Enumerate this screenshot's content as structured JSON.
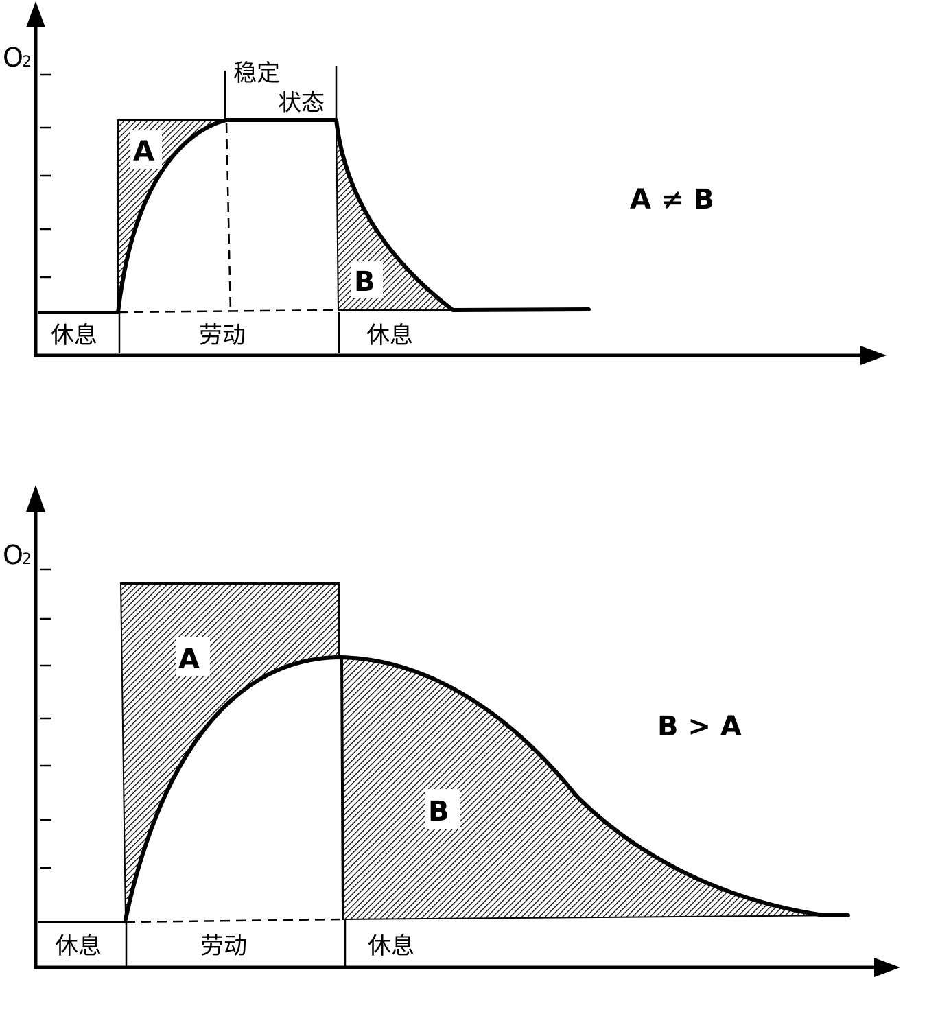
{
  "top": {
    "ylabel": "O",
    "ylabel_sub": "2",
    "steady_line1": "稳定",
    "steady_line2": "状态",
    "area_a": "A",
    "area_b": "B",
    "relation": "A ≠ B",
    "seg_rest1": "休息",
    "seg_work": "劳动",
    "seg_rest2": "休息"
  },
  "bottom": {
    "ylabel": "O",
    "ylabel_sub": "2",
    "area_a": "A",
    "area_b": "B",
    "relation": "B > A",
    "seg_rest1": "休息",
    "seg_work": "劳动",
    "seg_rest2": "休息"
  }
}
